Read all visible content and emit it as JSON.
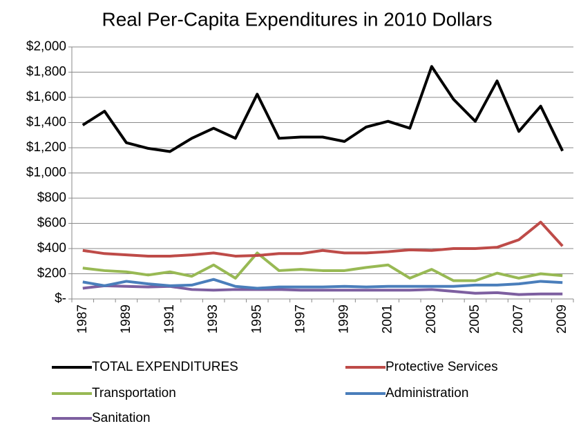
{
  "chart_data": {
    "type": "line",
    "title": "Real Per-Capita  Expenditures in 2010 Dollars",
    "categories": [
      "1987",
      null,
      "1989",
      null,
      "1991",
      null,
      "1993",
      null,
      "1995",
      null,
      "1997",
      null,
      "1999",
      null,
      "2001",
      null,
      "2003",
      null,
      "2005",
      null,
      "2007",
      null,
      "2009"
    ],
    "series": [
      {
        "name": "TOTAL EXPENDITURES",
        "color": "#000000",
        "values": [
          1380,
          1490,
          1240,
          1195,
          1170,
          1275,
          1355,
          1275,
          1625,
          1275,
          1285,
          1285,
          1250,
          1365,
          1410,
          1355,
          1845,
          1585,
          1410,
          1730,
          1330,
          1530,
          1175
        ]
      },
      {
        "name": "Protective Services",
        "color": "#be4b48",
        "values": [
          385,
          360,
          350,
          340,
          340,
          350,
          365,
          340,
          345,
          360,
          360,
          385,
          365,
          365,
          375,
          390,
          385,
          400,
          400,
          410,
          470,
          610,
          420
        ]
      },
      {
        "name": "Transportation",
        "color": "#98b954",
        "values": [
          245,
          225,
          215,
          190,
          215,
          180,
          270,
          165,
          365,
          225,
          235,
          225,
          225,
          250,
          270,
          165,
          235,
          145,
          145,
          205,
          165,
          200,
          185
        ]
      },
      {
        "name": "Administration",
        "color": "#4a7ebb",
        "values": [
          135,
          105,
          140,
          120,
          105,
          110,
          155,
          100,
          85,
          95,
          95,
          95,
          100,
          95,
          100,
          100,
          100,
          100,
          110,
          110,
          120,
          140,
          130
        ]
      },
      {
        "name": "Sanitation",
        "color": "#7d5fa0",
        "values": [
          85,
          105,
          100,
          95,
          100,
          75,
          70,
          75,
          75,
          75,
          70,
          70,
          70,
          70,
          70,
          70,
          75,
          60,
          45,
          50,
          35,
          40,
          40
        ]
      }
    ],
    "ylim": [
      0,
      2000
    ],
    "yticks": [
      {
        "value": 0,
        "label": "$-"
      },
      {
        "value": 200,
        "label": "$200"
      },
      {
        "value": 400,
        "label": "$400"
      },
      {
        "value": 600,
        "label": "$600"
      },
      {
        "value": 800,
        "label": "$800"
      },
      {
        "value": 1000,
        "label": "$1,000"
      },
      {
        "value": 1200,
        "label": "$1,200"
      },
      {
        "value": 1400,
        "label": "$1,400"
      },
      {
        "value": 1600,
        "label": "$1,600"
      },
      {
        "value": 1800,
        "label": "$1,800"
      },
      {
        "value": 2000,
        "label": "$2,000"
      }
    ],
    "grid": true
  }
}
